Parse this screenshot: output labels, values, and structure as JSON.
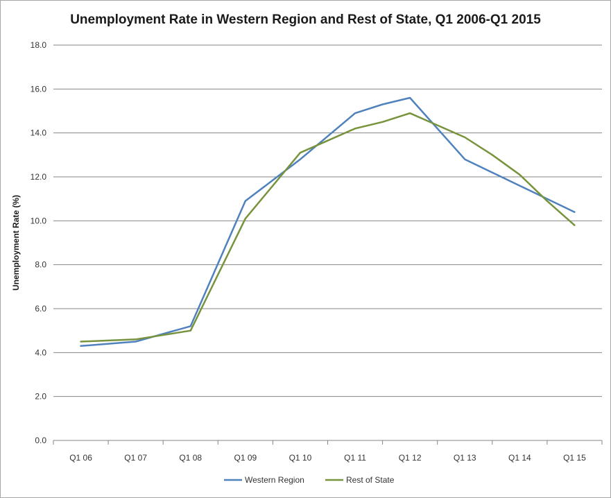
{
  "chart_data": {
    "type": "line",
    "title": "Unemployment Rate in Western Region and Rest of State, Q1 2006-Q1 2015",
    "xlabel": "",
    "ylabel": "Unemployment Rate (%)",
    "ylim": [
      0,
      18
    ],
    "yticks": [
      "0.0",
      "2.0",
      "4.0",
      "6.0",
      "8.0",
      "10.0",
      "12.0",
      "14.0",
      "16.0",
      "18.0"
    ],
    "categories": [
      "Q1 06",
      "Q1 07",
      "Q1 08",
      "Q1 09",
      "Q1 10",
      "Q1 11",
      "Q1 12",
      "Q1 13",
      "Q1 14",
      "Q1 15"
    ],
    "grid": "horizontal",
    "legend_position": "bottom",
    "series": [
      {
        "name": "Western Region",
        "color": "#4f81bd",
        "x": [
          0,
          1,
          2,
          3,
          4,
          5,
          5.5,
          6,
          7,
          7.5,
          8,
          8.5,
          9
        ],
        "values": [
          4.3,
          4.5,
          5.2,
          10.9,
          12.8,
          14.9,
          15.3,
          15.6,
          12.8,
          12.2,
          11.6,
          11.0,
          10.4
        ]
      },
      {
        "name": "Rest of State",
        "color": "#77933c",
        "x": [
          0,
          1,
          2,
          3,
          4,
          5,
          5.5,
          6,
          7,
          7.5,
          8,
          8.5,
          9
        ],
        "values": [
          4.5,
          4.6,
          5.0,
          10.1,
          13.1,
          14.2,
          14.5,
          14.9,
          13.8,
          13.0,
          12.1,
          10.9,
          9.8
        ]
      }
    ]
  }
}
